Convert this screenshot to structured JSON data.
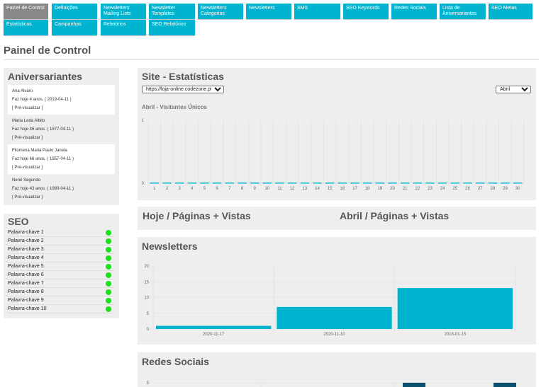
{
  "nav": [
    {
      "label": "Painel de Control",
      "active": true
    },
    {
      "label": "Definições"
    },
    {
      "label": "Newsletters Mailing Lists"
    },
    {
      "label": "Newsletter Templates"
    },
    {
      "label": "Newsletters Categorias"
    },
    {
      "label": "Newsletters"
    },
    {
      "label": "SMS"
    },
    {
      "label": "SEO Keywords"
    },
    {
      "label": "Redes Sociais"
    },
    {
      "label": "Lista de Aniversariantes"
    },
    {
      "label": "SEO Metas"
    },
    {
      "label": "Estatísticas"
    },
    {
      "label": "Campanhas"
    },
    {
      "label": "Relatórios"
    },
    {
      "label": "SEO Relatórios"
    }
  ],
  "page": {
    "title": "Painel de Control"
  },
  "birthdays": {
    "title": "Aniversariantes",
    "items": [
      {
        "name": "Ana Alvaro",
        "info": "Faz hoje 4 anos. ( 2019-04-11 )",
        "link": "[ Pré-visualizar ]"
      },
      {
        "name": "Maria Leda Albito",
        "info": "Faz hoje 46 anos. ( 1977-04-11 )",
        "link": "[ Pré-visualizar ]"
      },
      {
        "name": "Filomena Maria Paulo Janela",
        "info": "Faz hoje 66 anos. ( 1957-04-11 )",
        "link": "[ Pré-visualizar ]"
      },
      {
        "name": "Nené Segundo",
        "info": "Faz hoje 43 anos. ( 1980-04-11 )",
        "link": "[ Pré-visualizar ]"
      }
    ]
  },
  "seo": {
    "title": "SEO",
    "keywords": [
      "Palavra-chave 1",
      "Palavra-chave 2",
      "Palavra-chave 3",
      "Palavra-chave 4",
      "Palavra-chave 5",
      "Palavra-chave 6",
      "Palavra-chave 7",
      "Palavra-chave 8",
      "Palavra-chave 9",
      "Palavra-chave 10"
    ],
    "status_color": "#1ee01e"
  },
  "stats": {
    "title": "Site - Estatísticas",
    "site_select": "https://loja-online.codezone.pt",
    "month_select": "Abril",
    "subtitle": "Abril - Visitantes Únicos"
  },
  "today_pages": {
    "title": "Hoje / Páginas + Vistas"
  },
  "month_pages": {
    "title": "Abril / Páginas + Vistas"
  },
  "newsletters": {
    "title": "Newsletters"
  },
  "social": {
    "title": "Redes Sociais"
  },
  "colors": {
    "accent": "#00b4d0",
    "dark_bar": "#0b4f6c",
    "active_tab": "#888888"
  },
  "chart_data": [
    {
      "type": "bar",
      "title": "Abril - Visitantes Únicos",
      "categories": [
        "1",
        "2",
        "3",
        "4",
        "5",
        "6",
        "7",
        "8",
        "9",
        "10",
        "11",
        "12",
        "13",
        "14",
        "15",
        "16",
        "17",
        "18",
        "19",
        "20",
        "21",
        "22",
        "23",
        "24",
        "25",
        "26",
        "27",
        "28",
        "29",
        "30"
      ],
      "values": [
        0,
        0,
        0,
        0,
        0,
        0,
        0,
        0,
        0,
        0,
        0,
        0,
        0,
        0,
        0,
        0,
        0,
        0,
        0,
        0,
        0,
        0,
        0,
        0,
        0,
        0,
        0,
        0,
        0,
        0
      ],
      "ylim": [
        0,
        1
      ],
      "yticks": [
        "0",
        "1"
      ],
      "grid": true
    },
    {
      "type": "bar",
      "title": "Newsletters",
      "categories": [
        "2020-11-17",
        "2020-11-10",
        "2018-01-15"
      ],
      "values": [
        1,
        7,
        13
      ],
      "ylim": [
        0,
        20
      ],
      "yticks": [
        "0",
        "5",
        "10",
        "15",
        "20"
      ],
      "grid": true
    },
    {
      "type": "bar",
      "title": "Redes Sociais",
      "ylim": [
        0,
        5
      ],
      "yticks": [
        "5"
      ],
      "values": [
        5,
        5
      ],
      "grid": true
    }
  ]
}
